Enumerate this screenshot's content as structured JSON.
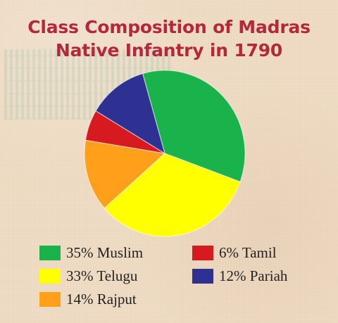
{
  "title_lines": [
    "Class Composition of Madras",
    "Native Infantry in 1790"
  ],
  "chart_data": {
    "type": "pie",
    "title": "Class Composition of Madras Native Infantry in 1790",
    "legend_position": "bottom",
    "start_angle_deg": -106,
    "slices": [
      {
        "name": "Muslim",
        "percent": 35,
        "label": "35% Muslim",
        "color": "#19b24b"
      },
      {
        "name": "Telugu",
        "percent": 33,
        "label": "33% Telugu",
        "color": "#ffff00"
      },
      {
        "name": "Rajput",
        "percent": 14,
        "label": "14% Rajput",
        "color": "#ff9f1a"
      },
      {
        "name": "Tamil",
        "percent": 6,
        "label": "6% Tamil",
        "color": "#d71920"
      },
      {
        "name": "Pariah",
        "percent": 12,
        "label": "12% Pariah",
        "color": "#2e3192"
      }
    ]
  },
  "legend": {
    "muslim": "35% Muslim",
    "telugu": "33% Telugu",
    "rajput": "14% Rajput",
    "tamil": "6% Tamil",
    "pariah": "12% Pariah"
  }
}
